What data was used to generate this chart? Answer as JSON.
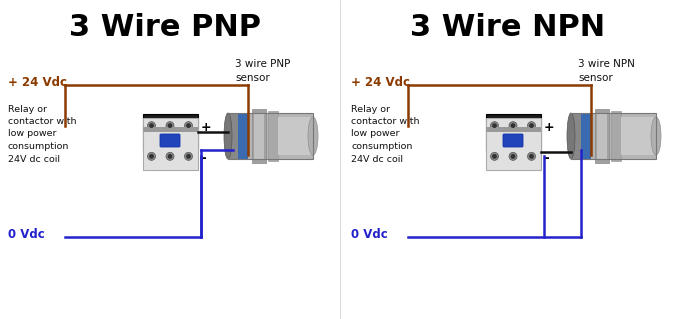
{
  "title_pnp": "3 Wire PNP",
  "title_npn": "3 Wire NPN",
  "title_fontsize": 22,
  "title_color": "#000000",
  "bg_color": "#ffffff",
  "wire_color_pos": "#8B3A00",
  "wire_color_neg": "#2222CC",
  "wire_color_black": "#111111",
  "label_pos_color": "#8B3A00",
  "label_neg_color": "#2222CC",
  "label_text_color": "#111111",
  "label_pos": "+ 24 Vdc",
  "label_neg": "0 Vdc",
  "relay_label": "Relay or\ncontactor with\nlow power\nconsumption\n24V dc coil",
  "sensor_label_pnp": "3 wire PNP\nsensor",
  "sensor_label_npn": "3 wire NPN\nsensor",
  "plus_minus_color": "#000000",
  "lw_wire": 1.8,
  "fig_w": 6.87,
  "fig_h": 3.19,
  "dpi": 100
}
